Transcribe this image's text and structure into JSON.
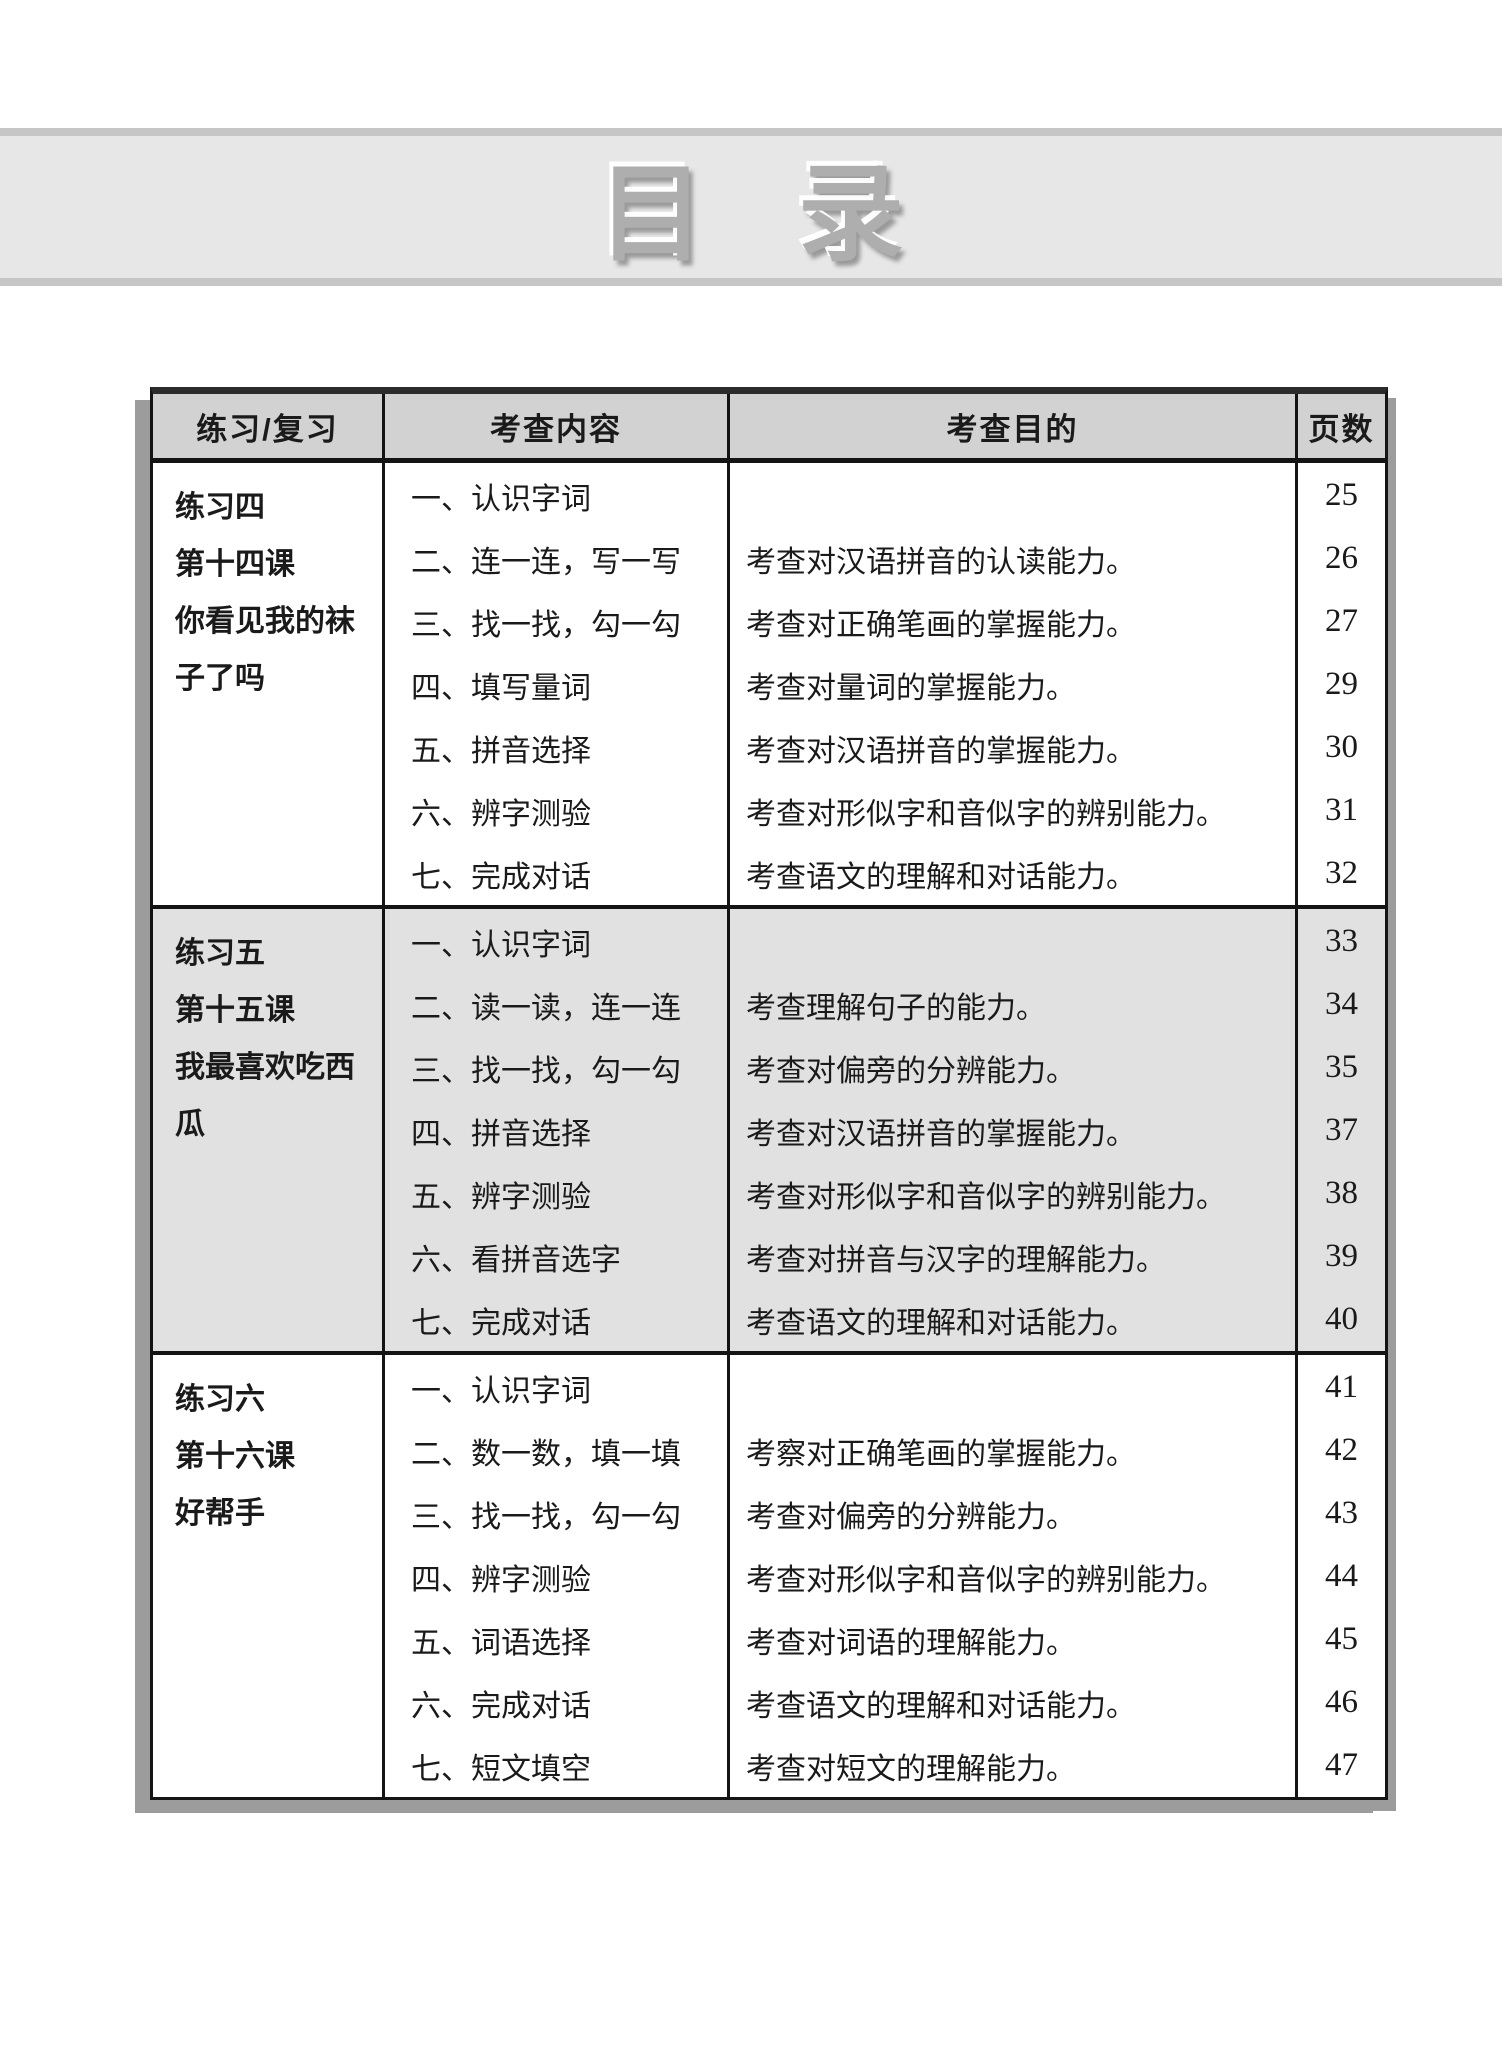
{
  "banner": {
    "title": "目 录"
  },
  "colors": {
    "banner-bg": "#e7e7e7",
    "banner-edge": "#c6c6c6",
    "title-gray": "#aeaeae",
    "header-bg": "#d2d2d2",
    "section-alt-bg": "#e1e1e1",
    "rule-black": "#141414",
    "shadow-gray": "#9c9c9c"
  },
  "table": {
    "headers": [
      "练习/复习",
      "考查内容",
      "考查目的",
      "页数"
    ],
    "sections": [
      {
        "label_lines": [
          "练习四",
          "第十四课",
          "你看见我的袜子了吗"
        ],
        "rows": [
          {
            "content": "一、认识字词",
            "purpose": "",
            "page": "25"
          },
          {
            "content": "二、连一连，写一写",
            "purpose": "考查对汉语拼音的认读能力。",
            "page": "26"
          },
          {
            "content": "三、找一找，勾一勾",
            "purpose": "考查对正确笔画的掌握能力。",
            "page": "27"
          },
          {
            "content": "四、填写量词",
            "purpose": "考查对量词的掌握能力。",
            "page": "29"
          },
          {
            "content": "五、拼音选择",
            "purpose": "考查对汉语拼音的掌握能力。",
            "page": "30"
          },
          {
            "content": "六、辨字测验",
            "purpose": "考查对形似字和音似字的辨别能力。",
            "page": "31"
          },
          {
            "content": "七、完成对话",
            "purpose": "考查语文的理解和对话能力。",
            "page": "32"
          }
        ]
      },
      {
        "label_lines": [
          "练习五",
          "第十五课",
          "我最喜欢吃西瓜"
        ],
        "rows": [
          {
            "content": "一、认识字词",
            "purpose": "",
            "page": "33"
          },
          {
            "content": "二、读一读，连一连",
            "purpose": "考查理解句子的能力。",
            "page": "34"
          },
          {
            "content": "三、找一找，勾一勾",
            "purpose": "考查对偏旁的分辨能力。",
            "page": "35"
          },
          {
            "content": "四、拼音选择",
            "purpose": "考查对汉语拼音的掌握能力。",
            "page": "37"
          },
          {
            "content": "五、辨字测验",
            "purpose": "考查对形似字和音似字的辨别能力。",
            "page": "38"
          },
          {
            "content": "六、看拼音选字",
            "purpose": "考查对拼音与汉字的理解能力。",
            "page": "39"
          },
          {
            "content": "七、完成对话",
            "purpose": "考查语文的理解和对话能力。",
            "page": "40"
          }
        ]
      },
      {
        "label_lines": [
          "练习六",
          "第十六课",
          "好帮手"
        ],
        "rows": [
          {
            "content": "一、认识字词",
            "purpose": "",
            "page": "41"
          },
          {
            "content": "二、数一数，填一填",
            "purpose": "考察对正确笔画的掌握能力。",
            "page": "42"
          },
          {
            "content": "三、找一找，勾一勾",
            "purpose": "考查对偏旁的分辨能力。",
            "page": "43"
          },
          {
            "content": "四、辨字测验",
            "purpose": "考查对形似字和音似字的辨别能力。",
            "page": "44"
          },
          {
            "content": "五、词语选择",
            "purpose": "考查对词语的理解能力。",
            "page": "45"
          },
          {
            "content": "六、完成对话",
            "purpose": "考查语文的理解和对话能力。",
            "page": "46"
          },
          {
            "content": "七、短文填空",
            "purpose": "考查对短文的理解能力。",
            "page": "47"
          }
        ]
      }
    ]
  }
}
